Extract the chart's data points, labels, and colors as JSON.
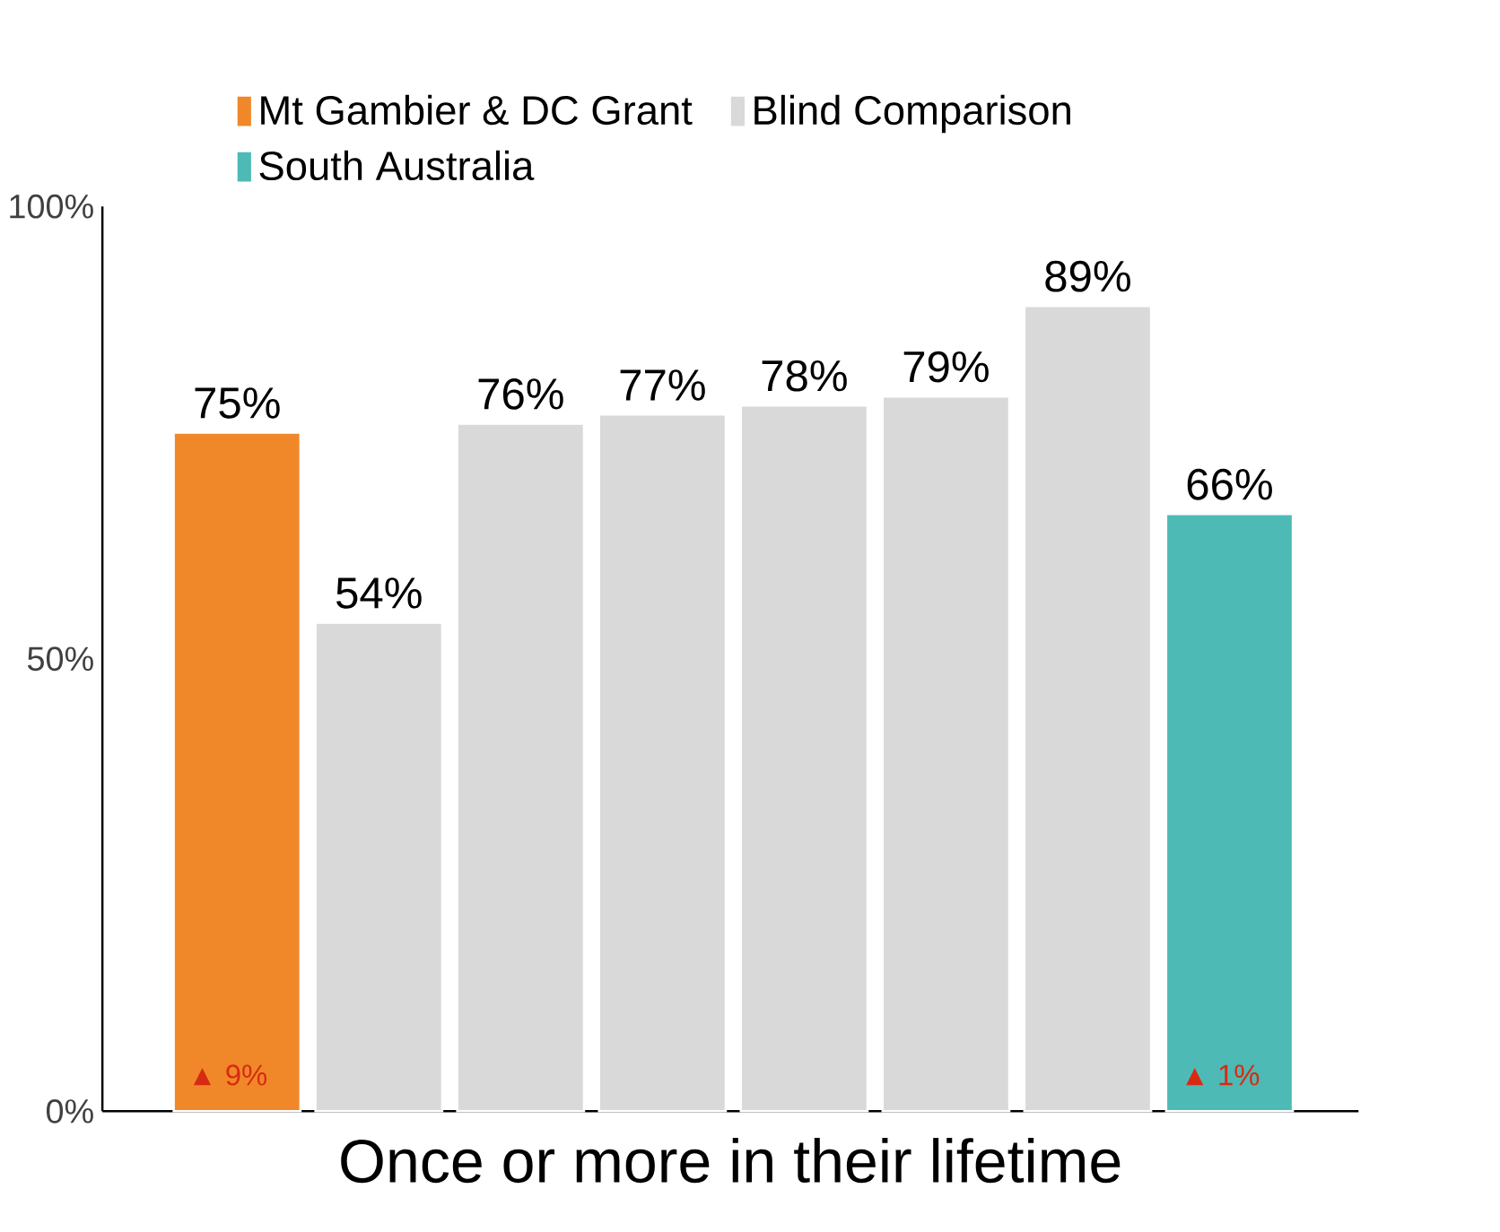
{
  "chart_data": {
    "type": "bar",
    "categories": [
      null,
      null,
      null,
      null,
      null,
      null,
      null,
      null
    ],
    "series": [
      {
        "name": "Mt Gambier & DC Grant",
        "color": "#f0882a",
        "values": [
          75,
          null,
          null,
          null,
          null,
          null,
          null,
          null
        ],
        "value_labels": [
          "75%",
          null,
          null,
          null,
          null,
          null,
          null,
          null
        ]
      },
      {
        "name": "Blind Comparison",
        "color": "#d9d9d9",
        "values": [
          null,
          54,
          76,
          77,
          78,
          79,
          89,
          null
        ],
        "value_labels": [
          null,
          "54%",
          "76%",
          "77%",
          "78%",
          "79%",
          "89%",
          null
        ]
      },
      {
        "name": "South Australia",
        "color": "#4dbab5",
        "values": [
          null,
          null,
          null,
          null,
          null,
          null,
          null,
          66
        ],
        "value_labels": [
          null,
          null,
          null,
          null,
          null,
          null,
          null,
          "66%"
        ]
      }
    ],
    "xlabel": "Once or more in their lifetime",
    "ylim": [
      0,
      100
    ],
    "yticks": [
      {
        "value": 0,
        "label": "0%"
      },
      {
        "value": 50,
        "label": "50%"
      },
      {
        "value": 100,
        "label": "100%"
      }
    ],
    "annotations": [
      {
        "text": "▲ 9%",
        "y": 0
      },
      {
        "text": "▲ 1%",
        "y": 0
      }
    ],
    "legend": "top",
    "grid": false
  }
}
